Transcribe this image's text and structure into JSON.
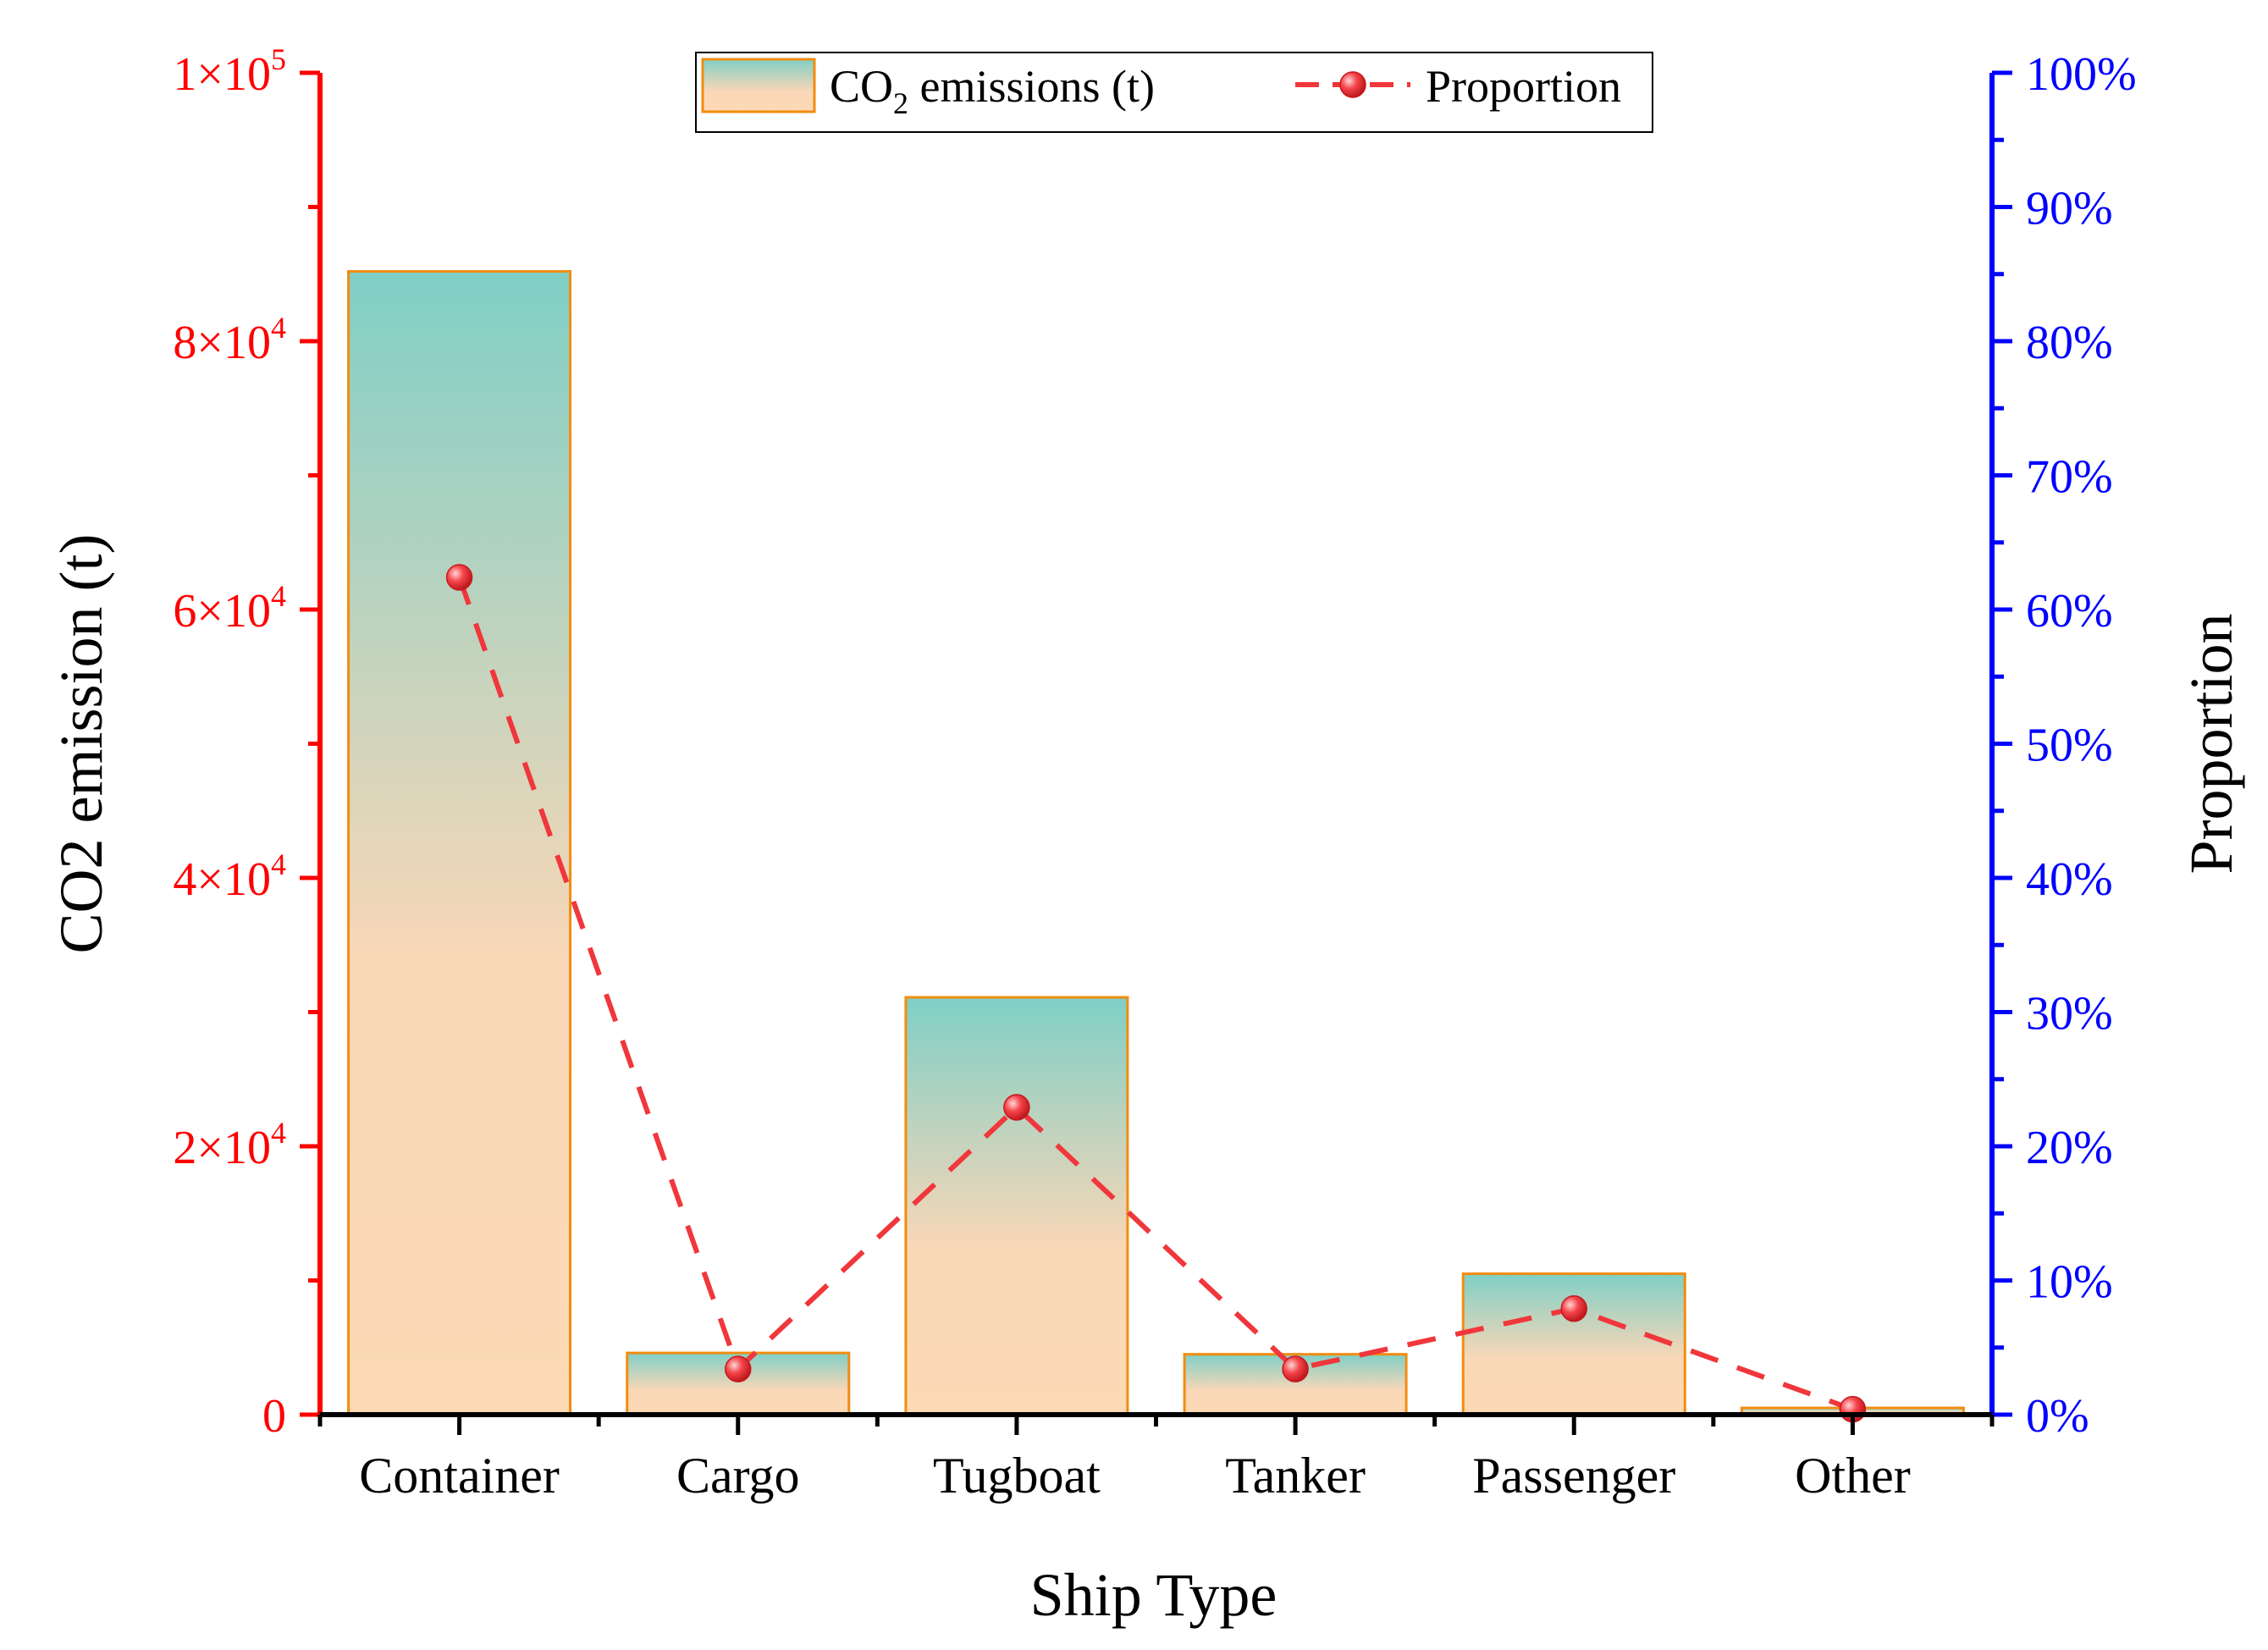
{
  "chart_data": {
    "type": "bar",
    "categories": [
      "Container",
      "Cargo",
      "Tugboat",
      "Tanker",
      "Passenger",
      "Other"
    ],
    "series": [
      {
        "name": "CO2 emissions (t)",
        "type": "bar",
        "axis": "left",
        "values": [
          85200,
          4600,
          31100,
          4500,
          10500,
          500
        ]
      },
      {
        "name": "Proportion",
        "type": "line",
        "axis": "right",
        "values": [
          0.624,
          0.034,
          0.229,
          0.034,
          0.079,
          0.004
        ]
      }
    ],
    "xlabel": "Ship Type",
    "ylabel": "CO2 emission (t)",
    "y2label": "Proportion",
    "ylim": [
      0,
      100000
    ],
    "y2lim": [
      0,
      1
    ],
    "left_ticks": [
      {
        "value": 0,
        "mantissa": "0",
        "exp": ""
      },
      {
        "value": 20000,
        "mantissa": "2×10",
        "exp": "4"
      },
      {
        "value": 40000,
        "mantissa": "4×10",
        "exp": "4"
      },
      {
        "value": 60000,
        "mantissa": "6×10",
        "exp": "4"
      },
      {
        "value": 80000,
        "mantissa": "8×10",
        "exp": "4"
      },
      {
        "value": 100000,
        "mantissa": "1×10",
        "exp": "5"
      }
    ],
    "right_ticks": [
      "0%",
      "10%",
      "20%",
      "30%",
      "40%",
      "50%",
      "60%",
      "70%",
      "80%",
      "90%",
      "100%"
    ],
    "legend": {
      "position": "top-center",
      "bar_label_prefix": "CO",
      "bar_label_sub": "2",
      "bar_label_suffix": " emissions (t)",
      "line_label": "Proportion"
    },
    "colors": {
      "left_axis": "#ff0000",
      "right_axis": "#0000ff",
      "bar_top": "#7fcfc6",
      "bar_bottom": "#fdd9b5",
      "bar_border": "#f28c0f",
      "line": "#f0373c"
    }
  }
}
